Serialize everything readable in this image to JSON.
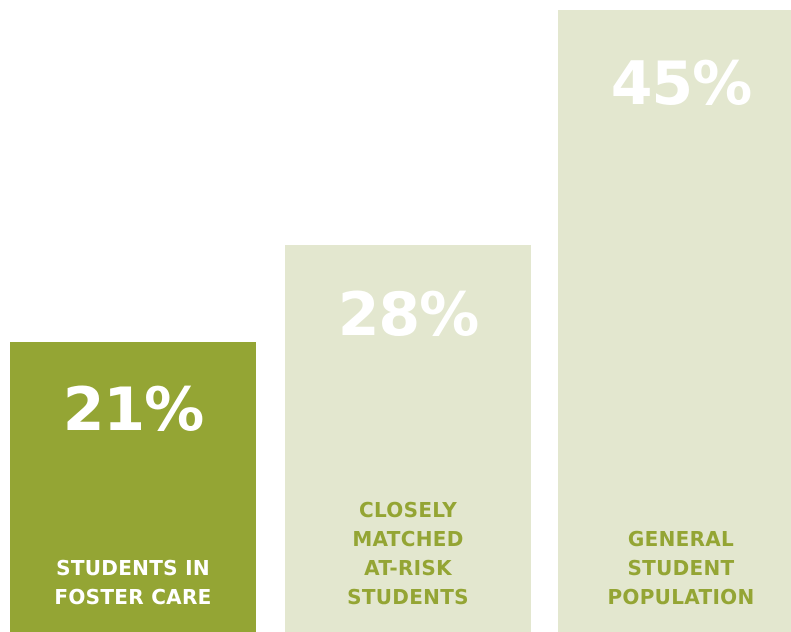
{
  "chart_data": {
    "type": "bar",
    "title": "",
    "xlabel": "",
    "ylabel": "",
    "ylim": [
      0,
      45
    ],
    "grid": false,
    "categories": [
      "STUDENTS IN\nFOSTER CARE",
      "CLOSELY\nMATCHED\nAT-RISK\nSTUDENTS",
      "GENERAL\nSTUDENT\nPOPULATION"
    ],
    "values": [
      21,
      28,
      45
    ],
    "value_labels": [
      "21%",
      "28%",
      "45%"
    ],
    "highlight_index": 0
  },
  "colors": {
    "highlight_bar": "#94a534",
    "muted_bar": "#e3e7cf",
    "highlight_label": "#ffffff",
    "muted_label": "#94a534",
    "value_text": "#ffffff"
  }
}
